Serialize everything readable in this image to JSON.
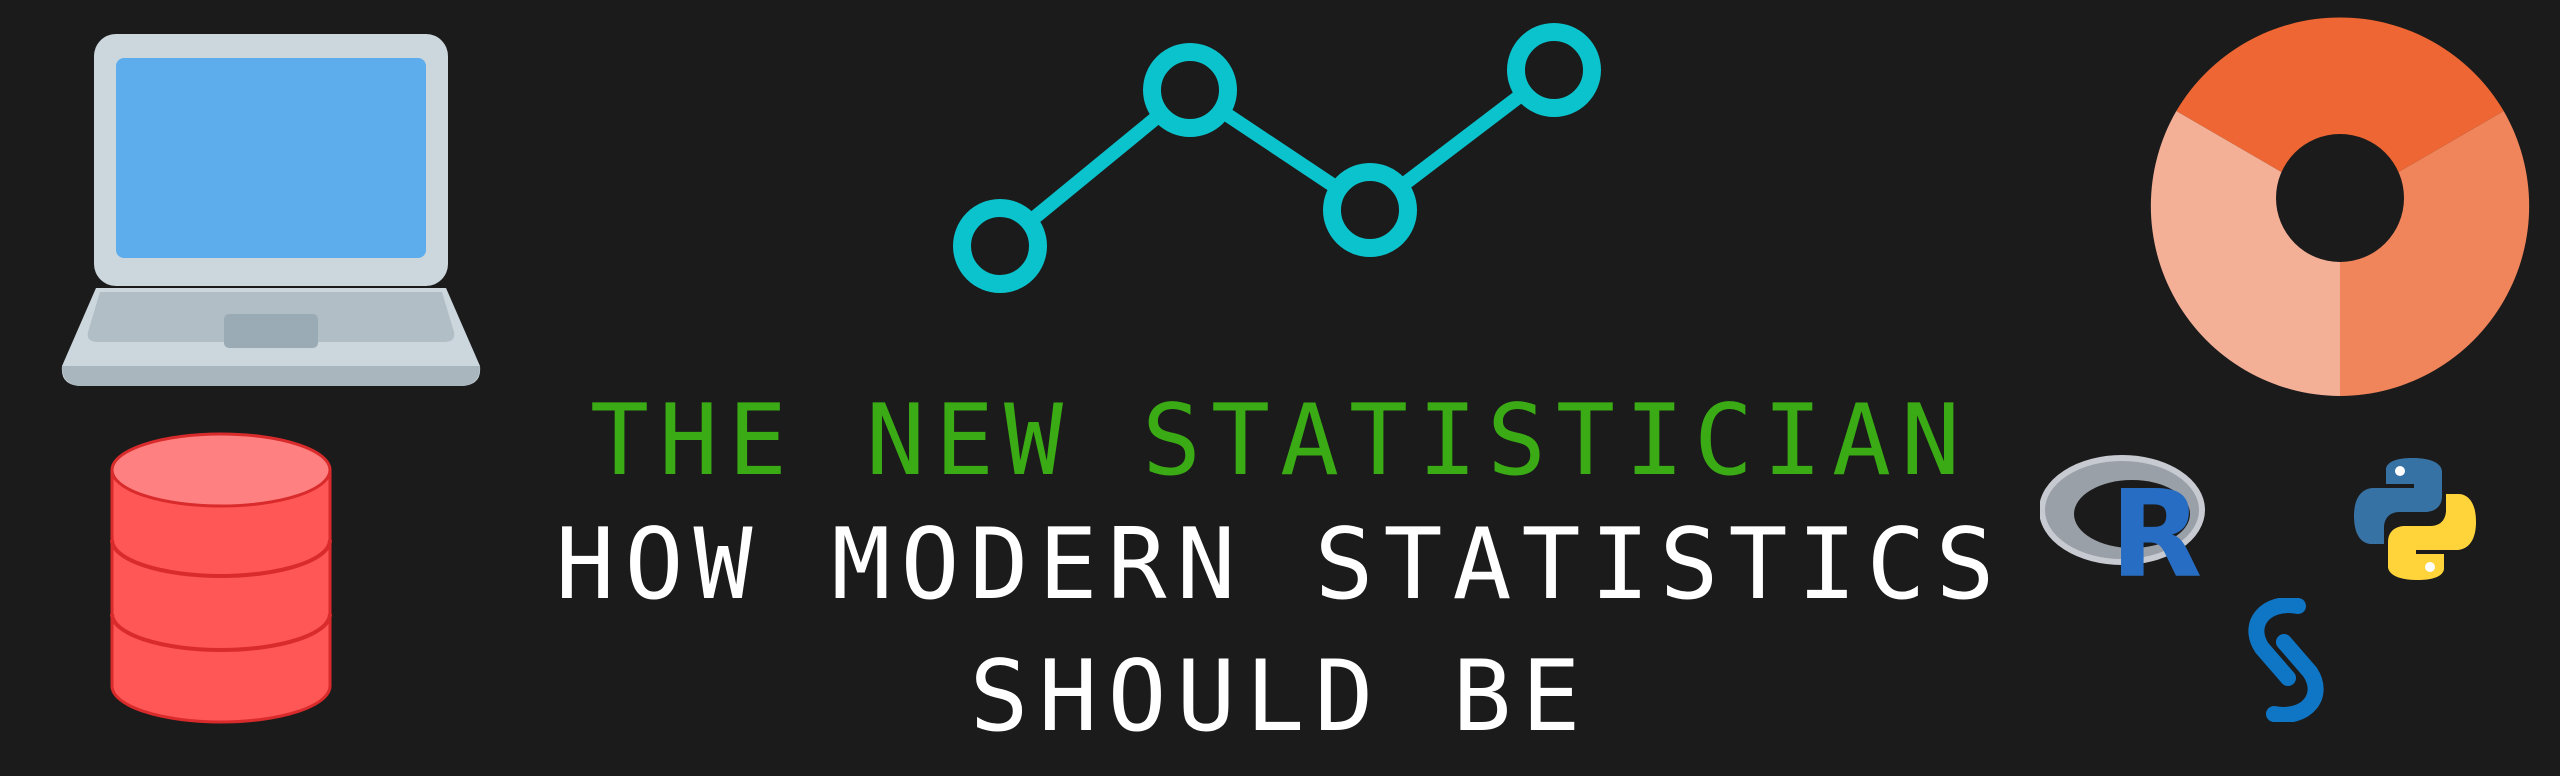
{
  "banner": {
    "line1": "THE NEW STATISTICIAN",
    "line2": "HOW MODERN STATISTICS",
    "line3": "SHOULD BE"
  },
  "icons": {
    "laptop": "laptop-icon",
    "database": "database-icon",
    "line_chart": "line-chart-icon",
    "donut_chart": "donut-chart-icon",
    "r_logo": "r-logo-icon",
    "python_logo": "python-logo-icon",
    "sas_logo": "sas-logo-icon"
  },
  "colors": {
    "background": "#1b1b1b",
    "title_green": "#3aab14",
    "subtitle_white": "#ffffff",
    "line_chart": "#0bc3cc",
    "laptop_screen": "#5dadec",
    "laptop_body": "#ccd6dd",
    "database_red": "#ff5555",
    "donut_dark": "#ee6633",
    "donut_mid": "#f0845b",
    "donut_light": "#f4af97",
    "r_blue": "#276dc3",
    "python_blue": "#3772a4",
    "python_yellow": "#ffd43b",
    "sas_blue": "#0f76c6"
  },
  "r_logo": {
    "letter": "R"
  }
}
